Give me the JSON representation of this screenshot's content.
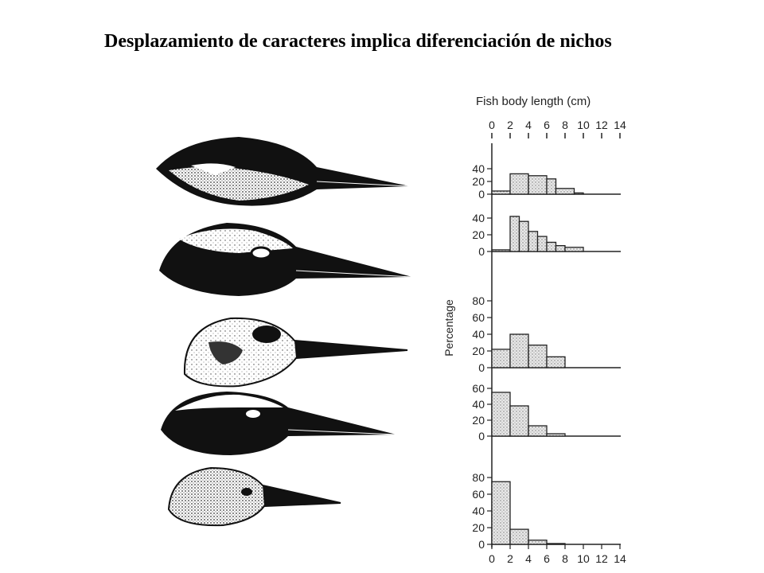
{
  "slide": {
    "title": "Desplazamiento de caracteres implica diferenciación de nichos"
  },
  "figure": {
    "bird_heads": [
      "bird-head-1",
      "bird-head-2",
      "bird-head-3",
      "bird-head-4",
      "bird-head-5"
    ]
  },
  "chart_data": {
    "type": "bar",
    "title": "",
    "xlabel": "Fish body length (cm)",
    "ylabel": "Percentage",
    "x_ticks": [
      "0",
      "2",
      "4",
      "6",
      "8",
      "10",
      "12",
      "14"
    ],
    "bin_edges": [
      0,
      2,
      3,
      4,
      5,
      6,
      7,
      8,
      9,
      10
    ],
    "panels": [
      {
        "ylim": [
          0,
          40
        ],
        "y_ticks": [
          "0",
          "20",
          "40"
        ],
        "bins": [
          [
            0,
            2,
            5
          ],
          [
            2,
            4,
            32
          ],
          [
            4,
            6,
            29
          ],
          [
            6,
            7,
            24
          ],
          [
            7,
            9,
            9
          ],
          [
            9,
            10,
            2
          ]
        ]
      },
      {
        "ylim": [
          0,
          40
        ],
        "y_ticks": [
          "0",
          "20",
          "40"
        ],
        "bins": [
          [
            0,
            2,
            2
          ],
          [
            2,
            3,
            42
          ],
          [
            3,
            4,
            36
          ],
          [
            4,
            5,
            24
          ],
          [
            5,
            6,
            18
          ],
          [
            6,
            7,
            11
          ],
          [
            7,
            8,
            7
          ],
          [
            8,
            10,
            5
          ]
        ]
      },
      {
        "ylim": [
          0,
          80
        ],
        "y_ticks": [
          "0",
          "20",
          "40",
          "60",
          "80"
        ],
        "bins": [
          [
            0,
            2,
            22
          ],
          [
            2,
            4,
            40
          ],
          [
            4,
            6,
            27
          ],
          [
            6,
            8,
            13
          ]
        ]
      },
      {
        "ylim": [
          0,
          60
        ],
        "y_ticks": [
          "0",
          "20",
          "40",
          "60"
        ],
        "bins": [
          [
            0,
            2,
            55
          ],
          [
            2,
            4,
            38
          ],
          [
            4,
            6,
            13
          ],
          [
            6,
            8,
            3
          ]
        ]
      },
      {
        "ylim": [
          0,
          80
        ],
        "y_ticks": [
          "0",
          "20",
          "40",
          "60",
          "80"
        ],
        "bins": [
          [
            0,
            2,
            75
          ],
          [
            2,
            4,
            18
          ],
          [
            4,
            6,
            5
          ],
          [
            6,
            8,
            1
          ]
        ]
      }
    ]
  }
}
